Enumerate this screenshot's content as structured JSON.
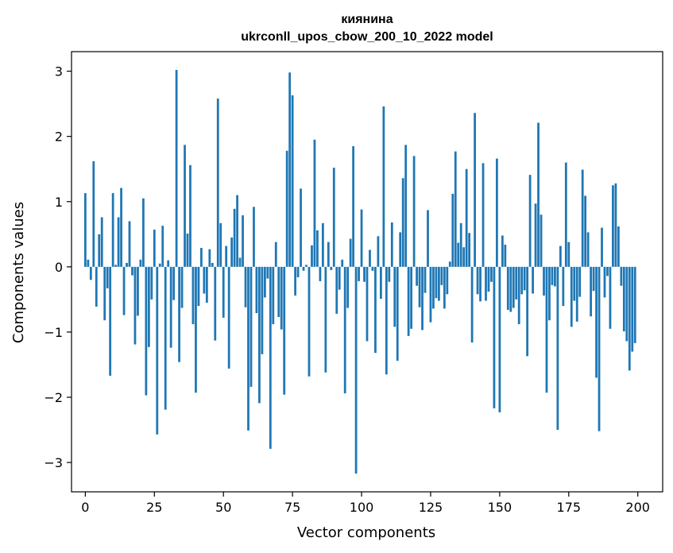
{
  "chart_data": {
    "type": "bar",
    "title_line1": "киянина",
    "title_line2": "ukrconll_upos_cbow_200_10_2022 model",
    "xlabel": "Vector components",
    "ylabel": "Components values",
    "xlim": [
      -5,
      209
    ],
    "ylim": [
      -3.45,
      3.3
    ],
    "xticks": [
      0,
      25,
      50,
      75,
      100,
      125,
      150,
      175,
      200
    ],
    "yticks": [
      -3,
      -2,
      -1,
      0,
      1,
      2,
      3
    ],
    "bar_color": "#1f77b4",
    "x": [
      0,
      1,
      2,
      3,
      4,
      5,
      6,
      7,
      8,
      9,
      10,
      11,
      12,
      13,
      14,
      15,
      16,
      17,
      18,
      19,
      20,
      21,
      22,
      23,
      24,
      25,
      26,
      27,
      28,
      29,
      30,
      31,
      32,
      33,
      34,
      35,
      36,
      37,
      38,
      39,
      40,
      41,
      42,
      43,
      44,
      45,
      46,
      47,
      48,
      49,
      50,
      51,
      52,
      53,
      54,
      55,
      56,
      57,
      58,
      59,
      60,
      61,
      62,
      63,
      64,
      65,
      66,
      67,
      68,
      69,
      70,
      71,
      72,
      73,
      74,
      75,
      76,
      77,
      78,
      79,
      80,
      81,
      82,
      83,
      84,
      85,
      86,
      87,
      88,
      89,
      90,
      91,
      92,
      93,
      94,
      95,
      96,
      97,
      98,
      99,
      100,
      101,
      102,
      103,
      104,
      105,
      106,
      107,
      108,
      109,
      110,
      111,
      112,
      113,
      114,
      115,
      116,
      117,
      118,
      119,
      120,
      121,
      122,
      123,
      124,
      125,
      126,
      127,
      128,
      129,
      130,
      131,
      132,
      133,
      134,
      135,
      136,
      137,
      138,
      139,
      140,
      141,
      142,
      143,
      144,
      145,
      146,
      147,
      148,
      149,
      150,
      151,
      152,
      153,
      154,
      155,
      156,
      157,
      158,
      159,
      160,
      161,
      162,
      163,
      164,
      165,
      166,
      167,
      168,
      169,
      170,
      171,
      172,
      173,
      174,
      175,
      176,
      177,
      178,
      179,
      180,
      181,
      182,
      183,
      184,
      185,
      186,
      187,
      188,
      189,
      190,
      191,
      192,
      193,
      194,
      195,
      196,
      197,
      198,
      199
    ],
    "values": [
      1.13,
      0.11,
      -0.2,
      1.62,
      -0.61,
      0.5,
      0.76,
      -0.82,
      -0.33,
      -1.67,
      1.13,
      0.03,
      0.76,
      1.21,
      -0.74,
      0.06,
      0.7,
      -0.13,
      -1.19,
      -0.75,
      0.11,
      1.05,
      -1.97,
      -1.23,
      -0.5,
      0.57,
      -2.57,
      0.05,
      0.63,
      -2.19,
      0.1,
      -1.24,
      -0.51,
      3.02,
      -1.46,
      -0.63,
      1.87,
      0.51,
      1.56,
      -0.88,
      -1.93,
      -0.6,
      0.29,
      -0.41,
      -0.55,
      0.27,
      0.06,
      -1.13,
      2.58,
      0.67,
      -0.78,
      0.32,
      -1.56,
      0.45,
      0.89,
      1.1,
      0.14,
      0.79,
      -0.62,
      -2.51,
      -1.84,
      0.92,
      -0.71,
      -2.09,
      -1.34,
      -0.47,
      -0.18,
      -2.79,
      -0.88,
      0.38,
      -0.77,
      -0.96,
      -1.96,
      1.78,
      2.98,
      2.63,
      -0.44,
      -0.16,
      1.2,
      -0.06,
      0.03,
      -1.68,
      0.33,
      1.95,
      0.56,
      -0.22,
      0.67,
      -1.62,
      0.38,
      -0.05,
      1.52,
      -0.72,
      -0.35,
      0.11,
      -1.94,
      -0.63,
      0.43,
      1.85,
      -3.17,
      -0.22,
      0.88,
      -0.23,
      -1.14,
      0.26,
      -0.06,
      -1.32,
      0.47,
      -0.49,
      2.46,
      -1.65,
      -0.23,
      0.68,
      -0.92,
      -1.44,
      0.53,
      1.36,
      1.87,
      -1.06,
      -0.95,
      1.7,
      -0.29,
      -0.62,
      -0.97,
      -0.4,
      0.87,
      -0.85,
      -0.64,
      -0.48,
      -0.52,
      -0.28,
      -0.64,
      -0.42,
      0.08,
      1.12,
      1.77,
      0.37,
      0.67,
      0.3,
      1.5,
      0.52,
      -1.16,
      2.36,
      -0.42,
      -0.53,
      1.59,
      -0.52,
      -0.38,
      -0.23,
      -2.17,
      1.66,
      -2.23,
      0.48,
      0.34,
      -0.66,
      -0.69,
      -0.63,
      -0.5,
      -0.88,
      -0.42,
      -0.36,
      -1.37,
      1.41,
      -0.41,
      0.97,
      2.21,
      0.8,
      -0.44,
      -1.93,
      -0.82,
      -0.28,
      -0.3,
      -2.5,
      0.32,
      -0.6,
      1.6,
      0.38,
      -0.92,
      -0.52,
      -0.84,
      -0.46,
      1.49,
      1.09,
      0.53,
      -0.76,
      -0.37,
      -1.7,
      -2.52,
      0.6,
      -0.47,
      -0.14,
      -0.95,
      1.25,
      1.28,
      0.62,
      -0.29,
      -0.99,
      -1.14,
      -1.59,
      -1.3,
      -1.17
    ]
  }
}
